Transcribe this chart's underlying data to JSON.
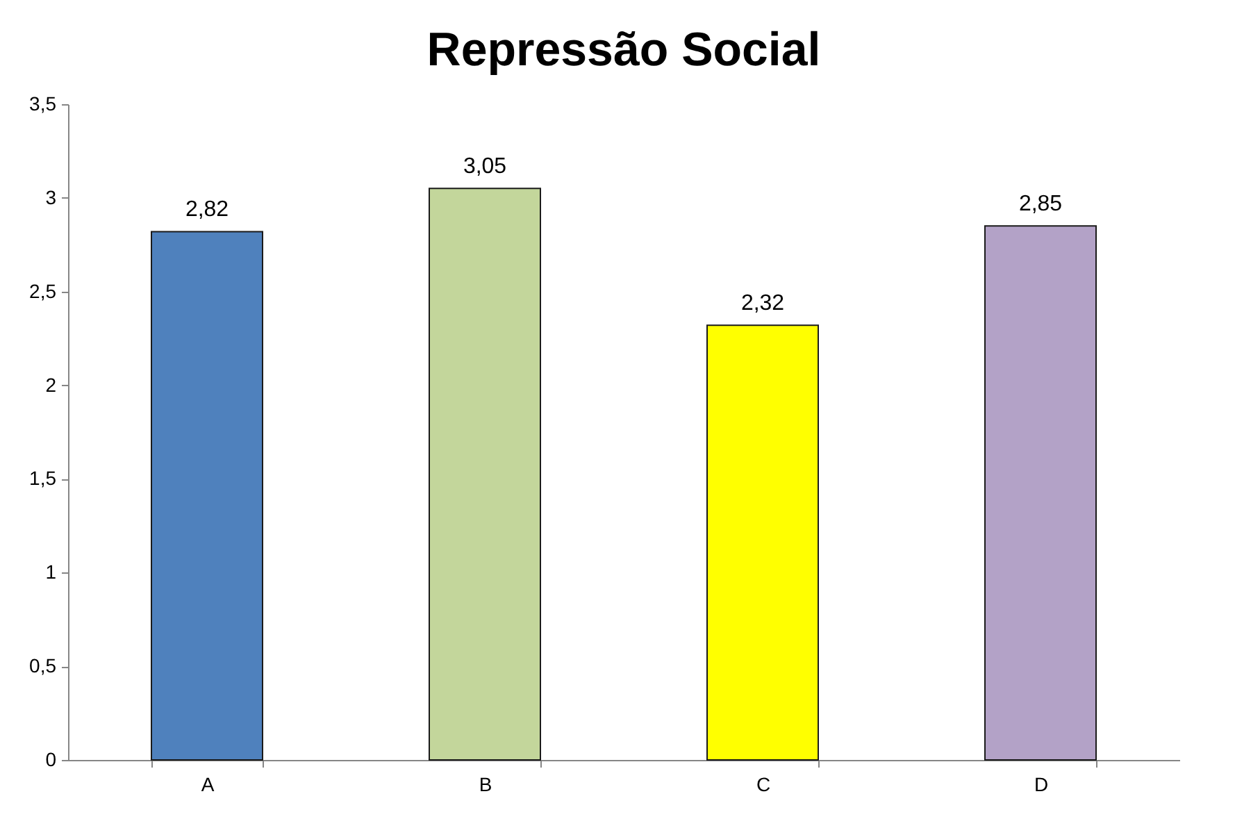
{
  "chart_data": {
    "type": "bar",
    "title": "Repressão Social",
    "categories": [
      "A",
      "B",
      "C",
      "D"
    ],
    "values": [
      2.82,
      3.05,
      2.32,
      2.85
    ],
    "colors": [
      "#4f81bd",
      "#c3d69b",
      "#ffff00",
      "#b3a2c7"
    ],
    "value_labels": [
      "2,82",
      "3,05",
      "2,32",
      "2,85"
    ],
    "ylim": [
      0,
      3.5
    ],
    "yticks": [
      0,
      {
        "value": 0.5,
        "label": "0,5"
      },
      1,
      {
        "value": 1.5,
        "label": "1,5"
      },
      2,
      {
        "value": 2.5,
        "label": "2,5"
      },
      3,
      {
        "value": 3.5,
        "label": "3,5"
      }
    ],
    "grid": false
  }
}
